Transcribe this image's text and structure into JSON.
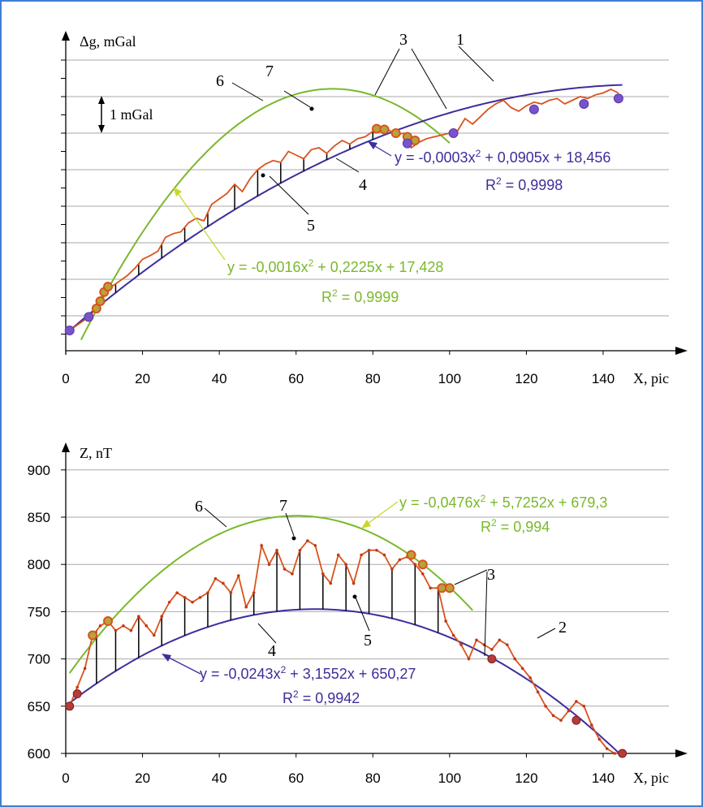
{
  "chart_data": [
    {
      "type": "line",
      "ylabel": "Δg, mGal",
      "xlabel": "X, pic",
      "x_ticks": [
        "0",
        "20",
        "40",
        "60",
        "80",
        "100",
        "120",
        "140"
      ],
      "xlim": [
        0,
        150
      ],
      "ylim": [
        15.8,
        25.3
      ],
      "y_tick_labels_shown": false,
      "grid": "horizontal",
      "scale_bar_label": "1 mGal",
      "scale_bar_value": 1,
      "fit_upper": {
        "equation": "y = -0,0016x² + 0,2225x + 17,428",
        "r2": "R² = 0,9999",
        "coeffs": [
          -0.0016,
          0.2225,
          17.428
        ],
        "color": "#7ab82c"
      },
      "fit_lower": {
        "equation": "y = -0,0003x² + 0,0905x + 18,456",
        "r2": "R² = 0,9998",
        "coeffs": [
          -0.0003,
          0.0905,
          18.456
        ],
        "color": "#3d2e9c"
      },
      "series": [
        {
          "color": "#d9531e",
          "x": [
            1,
            6,
            8,
            10,
            12,
            14,
            16,
            18,
            20,
            22,
            24,
            26,
            28,
            30,
            32,
            34,
            36,
            38,
            40,
            42,
            44,
            46,
            48,
            50,
            52,
            54,
            56,
            58,
            60,
            62,
            64,
            66,
            68,
            70,
            72,
            74,
            76,
            78,
            80,
            82,
            84,
            86,
            88,
            90,
            92,
            94,
            96,
            98,
            100,
            102,
            104,
            106,
            108,
            110,
            112,
            114,
            116,
            118,
            120,
            122,
            124,
            126,
            128,
            130,
            132,
            134,
            136,
            138,
            140,
            142,
            144
          ],
          "y": [
            18.55,
            18.92,
            19.15,
            19.6,
            19.75,
            19.9,
            20.05,
            20.25,
            20.5,
            20.6,
            20.72,
            21.1,
            21.2,
            21.25,
            21.5,
            21.62,
            21.55,
            22.0,
            22.15,
            22.3,
            22.55,
            22.35,
            22.7,
            22.95,
            23.1,
            23.2,
            23.15,
            23.45,
            23.35,
            23.25,
            23.5,
            23.55,
            23.4,
            23.6,
            23.75,
            23.65,
            23.8,
            23.85,
            24.0,
            24.1,
            24.05,
            23.9,
            23.95,
            23.55,
            23.7,
            23.8,
            23.85,
            23.9,
            23.95,
            24.0,
            24.35,
            24.2,
            24.4,
            24.6,
            24.75,
            24.85,
            24.65,
            24.55,
            24.7,
            24.8,
            24.75,
            24.85,
            24.9,
            24.75,
            24.85,
            24.95,
            24.9,
            25.0,
            25.05,
            25.15,
            25.05
          ]
        }
      ],
      "markers_purple": [
        [
          1,
          18.55
        ],
        [
          6,
          18.92
        ],
        [
          89,
          23.67
        ],
        [
          101,
          23.95
        ],
        [
          122,
          24.6
        ],
        [
          135,
          24.75
        ],
        [
          144,
          24.9
        ]
      ],
      "markers_olive": [
        [
          8,
          19.15
        ],
        [
          9,
          19.35
        ],
        [
          10,
          19.6
        ],
        [
          11,
          19.75
        ],
        [
          81,
          24.07
        ],
        [
          83,
          24.05
        ],
        [
          86,
          23.95
        ],
        [
          89,
          23.85
        ],
        [
          91,
          23.75
        ]
      ],
      "vertical_lines_x": [
        13,
        19,
        25,
        31,
        37,
        44,
        50,
        56,
        62,
        68,
        74,
        80,
        86
      ],
      "labels": [
        "1",
        "3",
        "4",
        "5",
        "6",
        "7"
      ]
    },
    {
      "type": "line",
      "ylabel": "Z, nT",
      "xlabel": "X, pic",
      "x_ticks": [
        "0",
        "20",
        "40",
        "60",
        "80",
        "100",
        "120",
        "140"
      ],
      "y_ticks": [
        "600",
        "650",
        "700",
        "750",
        "800",
        "850",
        "900"
      ],
      "xlim": [
        0,
        150
      ],
      "ylim": [
        600,
        900
      ],
      "grid": "horizontal",
      "fit_upper": {
        "equation": "y = -0,0476x² + 5,7252x + 679,3",
        "r2": "R² = 0,994",
        "coeffs": [
          -0.0476,
          5.7252,
          679.3
        ],
        "color": "#7ab82c"
      },
      "fit_lower": {
        "equation": "y = -0,0243x² + 3,1552x + 650,27",
        "r2": "R² = 0,9942",
        "coeffs": [
          -0.0243,
          3.1552,
          650.27
        ],
        "color": "#3d2e9c"
      },
      "series": [
        {
          "color": "#d9531e",
          "x": [
            1,
            3,
            5,
            7,
            9,
            11,
            13,
            15,
            17,
            19,
            21,
            23,
            25,
            27,
            29,
            31,
            33,
            35,
            37,
            39,
            41,
            43,
            45,
            47,
            49,
            51,
            53,
            55,
            57,
            59,
            61,
            63,
            65,
            67,
            69,
            71,
            73,
            75,
            77,
            79,
            81,
            83,
            85,
            87,
            89,
            91,
            93,
            95,
            97,
            99,
            101,
            103,
            105,
            107,
            109,
            111,
            113,
            115,
            117,
            119,
            121,
            123,
            125,
            127,
            129,
            131,
            133,
            135,
            137,
            139,
            141,
            143,
            145
          ],
          "y": [
            650,
            670,
            690,
            725,
            735,
            740,
            730,
            735,
            730,
            745,
            735,
            725,
            745,
            760,
            770,
            765,
            760,
            765,
            770,
            785,
            780,
            770,
            788,
            755,
            770,
            820,
            800,
            815,
            795,
            790,
            815,
            825,
            820,
            790,
            780,
            810,
            800,
            780,
            810,
            815,
            815,
            810,
            795,
            805,
            808,
            800,
            790,
            775,
            775,
            740,
            725,
            715,
            700,
            720,
            715,
            710,
            720,
            715,
            700,
            690,
            680,
            665,
            650,
            640,
            635,
            645,
            655,
            650,
            630,
            615,
            605,
            600,
            600
          ]
        }
      ],
      "markers_red": [
        [
          1,
          650
        ],
        [
          3,
          663
        ],
        [
          111,
          700
        ],
        [
          133,
          635
        ],
        [
          145,
          600
        ]
      ],
      "markers_olive": [
        [
          7,
          725
        ],
        [
          11,
          740
        ],
        [
          90,
          810
        ],
        [
          93,
          800
        ],
        [
          98,
          775
        ],
        [
          100,
          775
        ]
      ],
      "vertical_lines_x": [
        8,
        13,
        19,
        25,
        31,
        37,
        43,
        49,
        55,
        61,
        67,
        73,
        79,
        85,
        91,
        97
      ],
      "labels": [
        "2",
        "3",
        "4",
        "5",
        "6",
        "7"
      ]
    }
  ]
}
